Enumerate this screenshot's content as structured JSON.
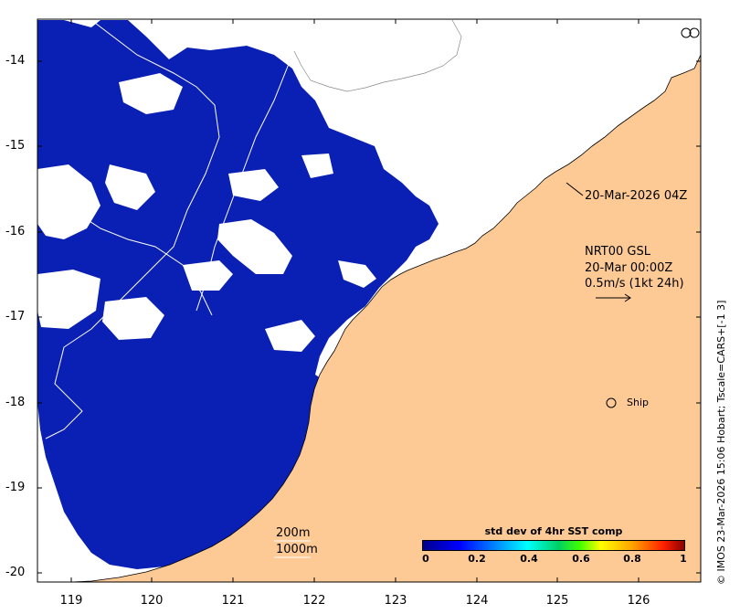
{
  "map": {
    "y_ticks": [
      "-14",
      "-15",
      "-16",
      "-17",
      "-18",
      "-19",
      "-20"
    ],
    "x_ticks": [
      "119",
      "120",
      "121",
      "122",
      "123",
      "124",
      "125",
      "126"
    ],
    "lon_range": [
      118.6,
      126.8
    ],
    "lat_range": [
      -20.1,
      -13.5
    ]
  },
  "annotations": {
    "time_label": "20-Mar-2026 04Z",
    "product_line1": "NRT00 GSL",
    "product_line2": "20-Mar 00:00Z",
    "vector_scale": "0.5m/s (1kt 24h)",
    "ship_label": "Ship",
    "isobath_200": "200m",
    "isobath_1000": "1000m"
  },
  "colorbar": {
    "title": "std dev of 4hr SST comp",
    "ticks": [
      "0",
      "0.2",
      "0.4",
      "0.6",
      "0.8",
      "1"
    ],
    "range": [
      0,
      1
    ]
  },
  "credit": "© IMOS 23-Mar-2026 15:06 Hobart; Tscale=CARS+[-1 3]",
  "colors": {
    "land": "#fdca96",
    "ocean_data": "#0a1fb4",
    "no_data": "#ffffff"
  }
}
